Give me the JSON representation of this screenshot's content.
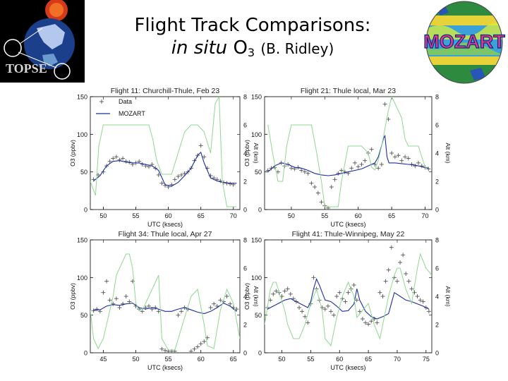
{
  "slide": {
    "title_line1": "Flight Track Comparisons:",
    "title_italic": "in situ",
    "title_species": "O",
    "title_subscript": "3",
    "title_citation": "(B. Ridley)",
    "logo_left_text": "TOPSE",
    "logo_right_text": "MOZART"
  },
  "colors": {
    "data_marker": "#555555",
    "mozart_line": "#1a2fa0",
    "altitude_line": "#8fd88f",
    "frame": "#000000"
  },
  "legend": {
    "data_label": "Data",
    "mozart_label": "MOZART"
  },
  "chart_data": [
    {
      "type": "line",
      "title": "Flight 11: Churchill-Thule, Feb 23",
      "xlabel": "UTC (ksecs)",
      "ylabel": "O3 (ppbv)",
      "y2label": "Alt (km)",
      "xlim": [
        48,
        71
      ],
      "ylim": [
        0,
        150
      ],
      "y2lim": [
        0,
        8
      ],
      "xticks": [
        50,
        55,
        60,
        65,
        70
      ],
      "yticks": [
        0,
        50,
        100,
        150
      ],
      "y2ticks": [
        0,
        2,
        4,
        6,
        8
      ],
      "show_legend": true,
      "legend_position": "top-left",
      "series": [
        {
          "name": "Data",
          "kind": "marker",
          "x": [
            48.5,
            49.2,
            50.0,
            50.5,
            51.0,
            51.5,
            52.0,
            52.5,
            53.0,
            53.5,
            54.0,
            54.5,
            55.0,
            55.5,
            56.0,
            56.5,
            57.0,
            57.5,
            58.0,
            58.5,
            59.0,
            59.5,
            60.0,
            60.5,
            61.0,
            61.5,
            62.0,
            62.5,
            63.0,
            63.5,
            64.0,
            64.5,
            65.0,
            65.5,
            66.0,
            66.5,
            67.0,
            67.5,
            68.0,
            68.5,
            69.0,
            69.5,
            70.0
          ],
          "y": [
            40,
            46,
            50,
            58,
            64,
            68,
            70,
            66,
            68,
            64,
            63,
            60,
            62,
            64,
            60,
            58,
            57,
            60,
            55,
            46,
            35,
            32,
            30,
            33,
            40,
            44,
            46,
            48,
            50,
            55,
            65,
            72,
            85,
            70,
            55,
            45,
            42,
            40,
            38,
            36,
            35,
            34,
            33
          ]
        },
        {
          "name": "MOZART",
          "kind": "line",
          "x": [
            48.5,
            49.5,
            50.5,
            51.5,
            52.5,
            53.5,
            54.5,
            55.5,
            56.5,
            57.5,
            58.5,
            59.5,
            60.5,
            61.5,
            62.5,
            63.5,
            64.5,
            65.0,
            65.5,
            66.5,
            67.5,
            68.5,
            69.5,
            70.5
          ],
          "y": [
            38,
            45,
            58,
            64,
            65,
            63,
            62,
            62,
            60,
            58,
            52,
            33,
            31,
            36,
            45,
            55,
            72,
            76,
            62,
            42,
            38,
            36,
            35,
            35
          ]
        },
        {
          "name": "Altitude",
          "kind": "line",
          "axis": "y2",
          "x": [
            48.0,
            48.8,
            49.3,
            50.0,
            50.8,
            51.2,
            57.0,
            57.6,
            58.2,
            59.0,
            60.5,
            61.5,
            62.5,
            63.5,
            64.5,
            65.5,
            66.5,
            67.2,
            67.8,
            68.3,
            69.0,
            70.5
          ],
          "y": [
            2.0,
            1.0,
            4.5,
            6.0,
            6.0,
            6.0,
            6.0,
            5.0,
            3.5,
            2.5,
            2.5,
            4.0,
            5.5,
            6.0,
            6.0,
            5.5,
            4.0,
            7.5,
            8.0,
            2.0,
            0.2,
            0.2
          ]
        }
      ]
    },
    {
      "type": "line",
      "title": "Flight 21: Thule local, Mar 23",
      "xlabel": "UTC (ksecs)",
      "ylabel": "O3 (ppbv)",
      "y2label": "Alt (km)",
      "xlim": [
        46,
        71
      ],
      "ylim": [
        0,
        150
      ],
      "y2lim": [
        0,
        8
      ],
      "xticks": [
        50,
        55,
        60,
        65,
        70
      ],
      "yticks": [
        0,
        50,
        100,
        150
      ],
      "y2ticks": [
        0,
        2,
        4,
        6,
        8
      ],
      "show_legend": false,
      "series": [
        {
          "name": "Data",
          "kind": "marker",
          "x": [
            46.5,
            47.0,
            47.5,
            48.0,
            48.5,
            49.0,
            49.5,
            50.0,
            50.5,
            51.0,
            51.5,
            52.0,
            52.5,
            53.0,
            53.5,
            54.0,
            54.5,
            55.0,
            55.5,
            56.0,
            56.5,
            57.0,
            57.5,
            58.0,
            58.5,
            59.0,
            59.5,
            60.0,
            60.5,
            61.0,
            61.5,
            62.0,
            62.5,
            63.0,
            63.5,
            64.0,
            64.5,
            65.0,
            65.5,
            66.0,
            66.5,
            67.0,
            67.5,
            68.0,
            68.5,
            69.0,
            69.5,
            70.0,
            70.5
          ],
          "y": [
            52,
            55,
            56,
            50,
            62,
            58,
            60,
            55,
            54,
            56,
            52,
            50,
            48,
            35,
            30,
            22,
            10,
            5,
            2,
            30,
            40,
            48,
            52,
            50,
            48,
            55,
            62,
            57,
            60,
            65,
            75,
            80,
            60,
            55,
            60,
            140,
            120,
            75,
            70,
            72,
            65,
            70,
            68,
            60,
            58,
            62,
            58,
            56,
            54
          ]
        },
        {
          "name": "MOZART",
          "kind": "line",
          "x": [
            46.5,
            47.5,
            48.5,
            49.5,
            50.5,
            51.5,
            52.5,
            53.5,
            54.5,
            55.5,
            56.5,
            57.5,
            58.5,
            59.5,
            60.5,
            61.5,
            62.5,
            63.0,
            63.5,
            63.8,
            64.0,
            64.3,
            64.6,
            65.5,
            66.5,
            67.5,
            68.5,
            69.5,
            70.5
          ],
          "y": [
            50,
            58,
            62,
            60,
            56,
            55,
            52,
            48,
            46,
            45,
            46,
            48,
            50,
            52,
            54,
            58,
            62,
            70,
            85,
            95,
            98,
            70,
            62,
            62,
            61,
            60,
            59,
            57,
            55
          ]
        },
        {
          "name": "Altitude",
          "kind": "line",
          "axis": "y2",
          "x": [
            46.5,
            47.2,
            48.0,
            48.7,
            49.3,
            50.0,
            51.0,
            53.0,
            53.8,
            54.5,
            55.0,
            56.0,
            57.0,
            57.5,
            58.5,
            59.5,
            60.5,
            61.5,
            62.0,
            62.5,
            63.0,
            63.5,
            64.5,
            65.0,
            65.5,
            66.5,
            67.0,
            67.5,
            69.0,
            70.0,
            70.5
          ],
          "y": [
            6.0,
            4.0,
            2.0,
            2.0,
            4.5,
            6.0,
            6.0,
            6.0,
            4.0,
            2.0,
            0.2,
            0.2,
            0.2,
            2.0,
            4.5,
            4.5,
            4.5,
            4.0,
            3.0,
            2.8,
            3.5,
            4.5,
            7.0,
            8.0,
            7.5,
            6.5,
            5.0,
            4.5,
            4.5,
            3.0,
            3.0
          ]
        }
      ]
    },
    {
      "type": "line",
      "title": "Flight 34: Thule local, Apr 27",
      "xlabel": "UTC (ksecs)",
      "ylabel": "O3 (ppbv)",
      "y2label": "Alt (km)",
      "xlim": [
        43,
        66
      ],
      "ylim": [
        0,
        150
      ],
      "y2lim": [
        0,
        8
      ],
      "xticks": [
        45,
        50,
        55,
        60,
        65
      ],
      "yticks": [
        0,
        50,
        100,
        150
      ],
      "y2ticks": [
        0,
        2,
        4,
        6,
        8
      ],
      "show_legend": false,
      "series": [
        {
          "name": "Data",
          "kind": "marker",
          "x": [
            43.5,
            44.0,
            44.5,
            45.0,
            45.5,
            46.0,
            46.5,
            47.0,
            47.5,
            48.0,
            48.5,
            49.0,
            49.5,
            50.0,
            50.5,
            51.0,
            51.5,
            52.0,
            52.5,
            53.0,
            53.5,
            54.0,
            54.5,
            55.0,
            55.5,
            56.0,
            56.5,
            57.0,
            57.5,
            58.0,
            58.5,
            59.0,
            59.5,
            60.0,
            60.5,
            61.0,
            61.5,
            62.0,
            62.5,
            63.0,
            63.5,
            64.0,
            64.5,
            65.0,
            65.5
          ],
          "y": [
            56,
            58,
            55,
            80,
            95,
            70,
            65,
            72,
            60,
            65,
            75,
            68,
            95,
            62,
            58,
            55,
            60,
            62,
            58,
            60,
            55,
            5,
            3,
            2,
            2,
            2,
            50,
            55,
            60,
            58,
            2,
            5,
            8,
            12,
            15,
            20,
            60,
            65,
            62,
            70,
            68,
            75,
            65,
            60,
            58
          ]
        },
        {
          "name": "MOZART",
          "kind": "line",
          "x": [
            43.5,
            44.5,
            45.5,
            46.5,
            47.5,
            48.5,
            49.5,
            50.5,
            51.5,
            52.5,
            53.5,
            54.5,
            55.5,
            56.5,
            57.5,
            58.5,
            59.5,
            60.5,
            61.5,
            62.5,
            63.5,
            64.5,
            65.5
          ],
          "y": [
            57,
            57,
            62,
            64,
            63,
            65,
            66,
            60,
            58,
            60,
            58,
            55,
            55,
            58,
            60,
            57,
            54,
            52,
            55,
            60,
            66,
            62,
            55
          ]
        },
        {
          "name": "Altitude",
          "kind": "line",
          "axis": "y2",
          "x": [
            43.0,
            43.5,
            44.2,
            45.0,
            46.5,
            47.0,
            48.5,
            49.0,
            49.5,
            50.0,
            50.5,
            51.0,
            52.5,
            53.5,
            54.0,
            55.0,
            56.0,
            57.5,
            58.5,
            59.5,
            60.5,
            61.0,
            62.0,
            63.0,
            64.0,
            65.0,
            66.0
          ],
          "y": [
            3.0,
            1.0,
            0.3,
            1.0,
            4.0,
            5.5,
            7.0,
            7.0,
            6.0,
            3.5,
            3.0,
            3.0,
            4.5,
            5.5,
            1.0,
            0.2,
            0.2,
            2.5,
            4.0,
            4.5,
            2.0,
            0.5,
            0.3,
            3.0,
            4.5,
            3.5,
            1.0
          ]
        }
      ]
    },
    {
      "type": "line",
      "title": "Flight 41: Thule-Winnipeg, May 22",
      "xlabel": "UTC (ksecs)",
      "ylabel": "O3 (ppbv)",
      "y2label": "Alt (km)",
      "xlim": [
        47,
        76
      ],
      "ylim": [
        0,
        150
      ],
      "y2lim": [
        0,
        8
      ],
      "xticks": [
        50,
        55,
        60,
        65,
        70,
        75
      ],
      "yticks": [
        0,
        50,
        100,
        150
      ],
      "y2ticks": [
        0,
        2,
        4,
        6,
        8
      ],
      "show_legend": false,
      "series": [
        {
          "name": "Data",
          "kind": "marker",
          "x": [
            47.5,
            48.0,
            48.5,
            49.0,
            49.5,
            50.0,
            50.5,
            51.0,
            51.5,
            52.0,
            52.5,
            53.0,
            53.5,
            54.0,
            54.5,
            55.0,
            55.5,
            56.0,
            56.5,
            57.0,
            57.5,
            58.0,
            58.5,
            59.0,
            59.5,
            60.0,
            60.5,
            61.0,
            61.5,
            62.0,
            62.5,
            63.0,
            63.5,
            64.0,
            64.5,
            65.0,
            65.5,
            66.0,
            66.5,
            67.0,
            67.5,
            68.0,
            68.5,
            69.0,
            69.5,
            70.0,
            70.5,
            71.0,
            71.5,
            72.0,
            72.5,
            73.0,
            73.5,
            74.0,
            74.5,
            75.0,
            75.5
          ],
          "y": [
            60,
            70,
            78,
            82,
            80,
            75,
            82,
            85,
            78,
            72,
            68,
            60,
            55,
            48,
            40,
            65,
            100,
            85,
            70,
            60,
            58,
            62,
            55,
            50,
            75,
            80,
            72,
            68,
            80,
            85,
            90,
            70,
            55,
            45,
            40,
            38,
            42,
            45,
            40,
            80,
            75,
            95,
            110,
            140,
            100,
            95,
            120,
            130,
            105,
            95,
            85,
            80,
            75,
            70,
            68,
            60,
            55
          ]
        },
        {
          "name": "MOZART",
          "kind": "line",
          "x": [
            47.5,
            48.5,
            49.5,
            50.5,
            51.5,
            52.5,
            53.5,
            54.5,
            55.0,
            55.5,
            56.0,
            56.5,
            57.5,
            58.5,
            59.5,
            60.5,
            61.5,
            62.5,
            63.0,
            63.5,
            64.5,
            65.5,
            66.5,
            67.5,
            68.5,
            69.5,
            70.5,
            71.5,
            72.5,
            73.5,
            74.5,
            75.5
          ],
          "y": [
            58,
            62,
            66,
            70,
            72,
            68,
            64,
            60,
            68,
            85,
            98,
            90,
            70,
            68,
            62,
            55,
            56,
            65,
            85,
            70,
            55,
            48,
            45,
            48,
            52,
            80,
            75,
            70,
            68,
            65,
            62,
            58
          ]
        },
        {
          "name": "Altitude",
          "kind": "line",
          "axis": "y2",
          "x": [
            47.0,
            48.0,
            48.5,
            49.0,
            50.5,
            51.0,
            52.0,
            53.0,
            54.0,
            55.0,
            56.0,
            57.0,
            57.5,
            58.5,
            59.5,
            60.5,
            61.5,
            62.5,
            63.0,
            64.0,
            65.0,
            66.0,
            67.0,
            67.5,
            68.5,
            69.5,
            70.0,
            70.5,
            71.5,
            72.5,
            73.5,
            74.0,
            75.0,
            76.0
          ],
          "y": [
            2.0,
            4.5,
            5.0,
            5.0,
            3.0,
            2.0,
            1.0,
            1.0,
            2.0,
            3.5,
            4.5,
            3.0,
            1.0,
            0.5,
            2.5,
            4.0,
            5.0,
            4.0,
            2.5,
            3.0,
            3.5,
            2.0,
            1.0,
            2.0,
            4.0,
            5.5,
            6.0,
            6.0,
            4.5,
            3.5,
            6.0,
            7.0,
            6.0,
            5.5
          ]
        }
      ]
    }
  ]
}
